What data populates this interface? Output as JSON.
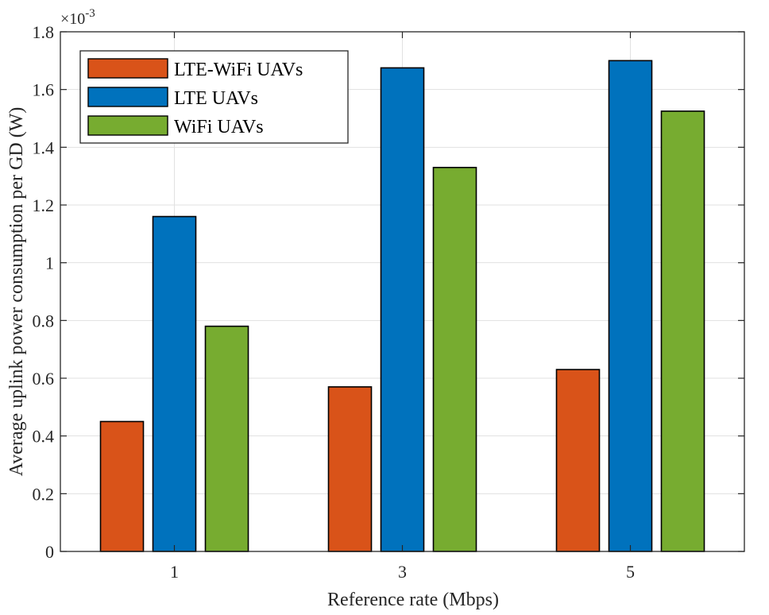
{
  "chart_data": {
    "type": "bar",
    "categories": [
      "1",
      "3",
      "5"
    ],
    "series": [
      {
        "name": "LTE-WiFi UAVs",
        "values": [
          0.45,
          0.57,
          0.63
        ],
        "color": "#D95319"
      },
      {
        "name": "LTE UAVs",
        "values": [
          1.16,
          1.675,
          1.7
        ],
        "color": "#0072BD"
      },
      {
        "name": "WiFi UAVs",
        "values": [
          0.78,
          1.33,
          1.525
        ],
        "color": "#77AC30"
      }
    ],
    "xlabel": "Reference rate (Mbps)",
    "ylabel": "Average uplink power consumption per GD (W)",
    "ylim": [
      0,
      1.8
    ],
    "yticks": [
      "0",
      "0.2",
      "0.4",
      "0.6",
      "0.8",
      "1",
      "1.2",
      "1.4",
      "1.6",
      "1.8"
    ],
    "y_multiplier_base": "×10",
    "y_multiplier_exponent": "-3",
    "grid": true,
    "legend_position": "top-left"
  }
}
